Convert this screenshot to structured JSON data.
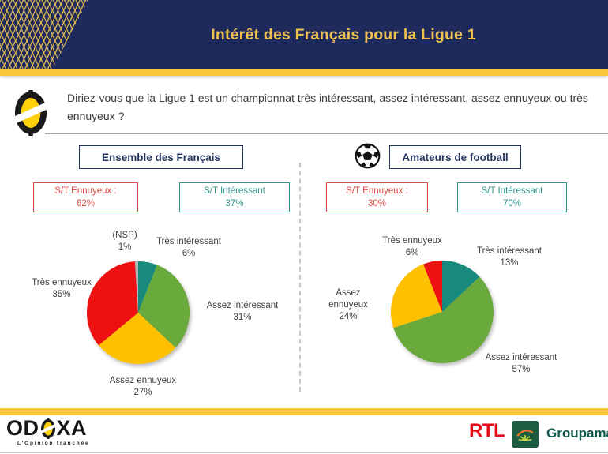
{
  "header": {
    "title": "Intérêt des Français pour la Ligue 1"
  },
  "question": {
    "text": "Diriez-vous que la Ligue 1 est un championnat très intéressant, assez intéressant, assez ennuyeux ou très ennuyeux ?"
  },
  "panels": [
    {
      "title": "Ensemble des Français",
      "st_ennuyeux": {
        "label": "S/T Ennuyeux :",
        "value": "62%"
      },
      "st_interessant": {
        "label": "S/T Intéressant",
        "value": "37%"
      }
    },
    {
      "title": "Amateurs de football",
      "st_ennuyeux": {
        "label": "S/T Ennuyeux :",
        "value": "30%"
      },
      "st_interessant": {
        "label": "S/T Intéressant",
        "value": "70%"
      }
    }
  ],
  "chart_data": [
    {
      "type": "pie",
      "title": "Ensemble des Français",
      "start_angle": "12-oclock",
      "direction": "clockwise",
      "slices": [
        {
          "label": "Très intéressant",
          "value": 6,
          "pct": "6%",
          "color": "#17897d"
        },
        {
          "label": "Assez intéressant",
          "value": 31,
          "pct": "31%",
          "color": "#6aa93c"
        },
        {
          "label": "Assez ennuyeux",
          "value": 27,
          "pct": "27%",
          "color": "#ffc000"
        },
        {
          "label": "Très ennuyeux",
          "value": 35,
          "pct": "35%",
          "color": "#ee1111"
        },
        {
          "label": "(NSP)",
          "value": 1,
          "pct": "1%",
          "color": "#b5b5b5"
        }
      ]
    },
    {
      "type": "pie",
      "title": "Amateurs de football",
      "start_angle": "12-oclock",
      "direction": "clockwise",
      "slices": [
        {
          "label": "Très intéressant",
          "value": 13,
          "pct": "13%",
          "color": "#17897d"
        },
        {
          "label": "Assez intéressant",
          "value": 57,
          "pct": "57%",
          "color": "#6aa93c"
        },
        {
          "label": "Assez ennuyeux",
          "value": 24,
          "pct": "24%",
          "color": "#ffc000"
        },
        {
          "label": "Très ennuyeux",
          "value": 6,
          "pct": "6%",
          "color": "#ee1111"
        }
      ]
    }
  ],
  "footer": {
    "odoxa_prefix": "OD",
    "odoxa_suffix": "XA",
    "odoxa_tagline": "L'Opinion tranchée",
    "rtl": "RTL",
    "groupama": "Groupama"
  }
}
